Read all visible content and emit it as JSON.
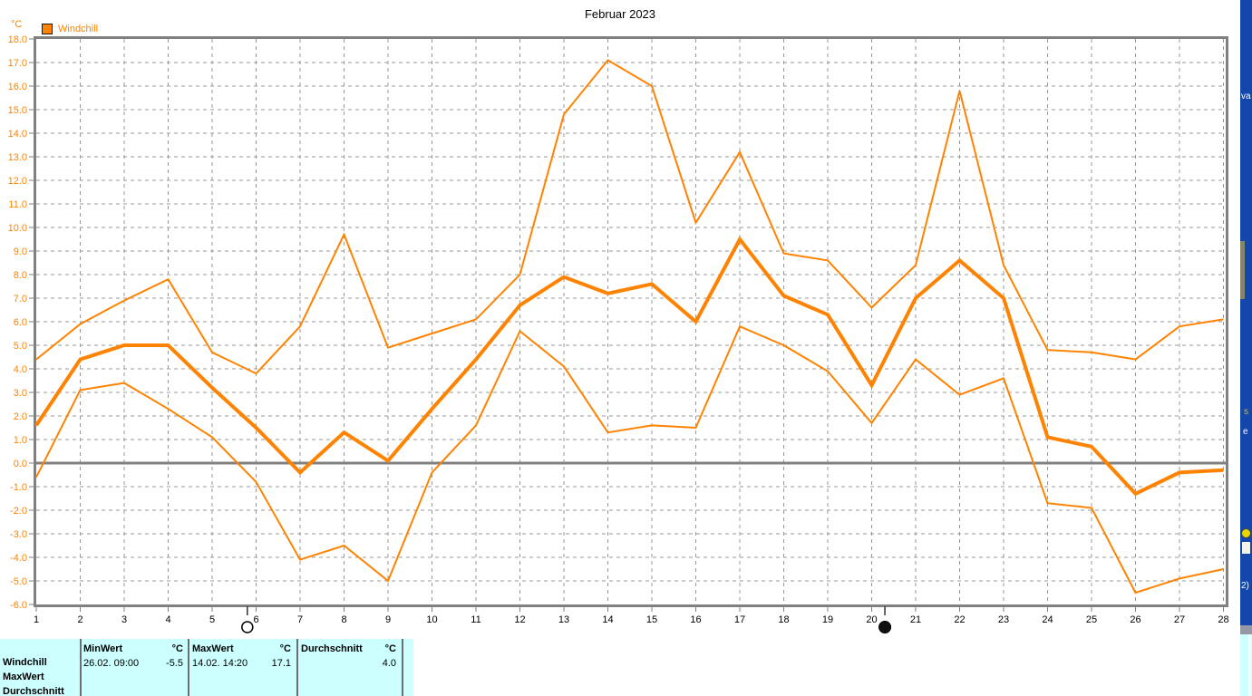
{
  "colors": {
    "accent": "#FF8300",
    "grid": "#9A9A9A",
    "axis_frame": "#808080",
    "tick_label_x": "#000000",
    "table_bg": "#CCFFFF",
    "desktop_blue": "#1447AC"
  },
  "axes": {
    "y_unit": "°C",
    "y_min": -6.0,
    "y_max": 18.0,
    "y_step": 1.0,
    "x_first_day": 1,
    "x_last_day": 28
  },
  "legend": {
    "label": "Windchill",
    "swatch_color": "#FF8300"
  },
  "chart_data": {
    "type": "line",
    "title": "Februar 2023",
    "ylabel": "°C",
    "xlabel": "",
    "ylim": [
      -6.0,
      18.0
    ],
    "grid": true,
    "x": [
      1,
      2,
      3,
      4,
      5,
      6,
      7,
      8,
      9,
      10,
      11,
      12,
      13,
      14,
      15,
      16,
      17,
      18,
      19,
      20,
      21,
      22,
      23,
      24,
      25,
      26,
      27,
      28
    ],
    "series": [
      {
        "name": "MaxWert",
        "style": "thin",
        "values": [
          4.4,
          5.9,
          6.9,
          7.8,
          4.7,
          3.8,
          5.8,
          9.7,
          4.9,
          5.5,
          6.1,
          8.0,
          14.8,
          17.1,
          16.0,
          10.2,
          13.2,
          8.9,
          8.6,
          6.6,
          8.4,
          15.8,
          8.4,
          4.8,
          4.7,
          4.4,
          5.8,
          6.1
        ]
      },
      {
        "name": "Windchill",
        "style": "thick",
        "values": [
          1.6,
          4.4,
          5.0,
          5.0,
          3.2,
          1.5,
          -0.4,
          1.3,
          0.1,
          2.3,
          4.4,
          6.7,
          7.9,
          7.2,
          7.6,
          6.0,
          9.5,
          7.1,
          6.3,
          3.3,
          7.0,
          8.6,
          7.0,
          1.1,
          0.7,
          -1.3,
          -0.4,
          -0.3
        ]
      },
      {
        "name": "MinWert",
        "style": "thin",
        "values": [
          -0.6,
          3.1,
          3.4,
          2.3,
          1.1,
          -0.8,
          -4.1,
          -3.5,
          -5.0,
          -0.4,
          1.6,
          5.6,
          4.1,
          1.3,
          1.6,
          1.5,
          5.8,
          5.0,
          3.9,
          1.7,
          4.4,
          2.9,
          3.6,
          -1.7,
          -1.9,
          -5.5,
          -4.9,
          -4.5
        ]
      }
    ],
    "annotations": [
      {
        "symbol": "full-moon-circle",
        "day": 5.8
      },
      {
        "symbol": "new-moon-dot",
        "day": 20.3
      }
    ]
  },
  "stats_table": {
    "row_labels": [
      "Windchill",
      "MaxWert",
      "Durchschnitt"
    ],
    "columns": [
      {
        "header": "MinWert",
        "unit": "°C",
        "datetime": "26.02.  09:00",
        "value": "-5.5"
      },
      {
        "header": "MaxWert",
        "unit": "°C",
        "datetime": "14.02.  14:20",
        "value": "17.1"
      },
      {
        "header": "Durchschnitt",
        "unit": "°C",
        "datetime": "",
        "value": "4.0"
      }
    ]
  },
  "desktop_strip": {
    "top_text": "va",
    "s_text": "s",
    "e_text": "e",
    "bottom_text": "2)"
  }
}
